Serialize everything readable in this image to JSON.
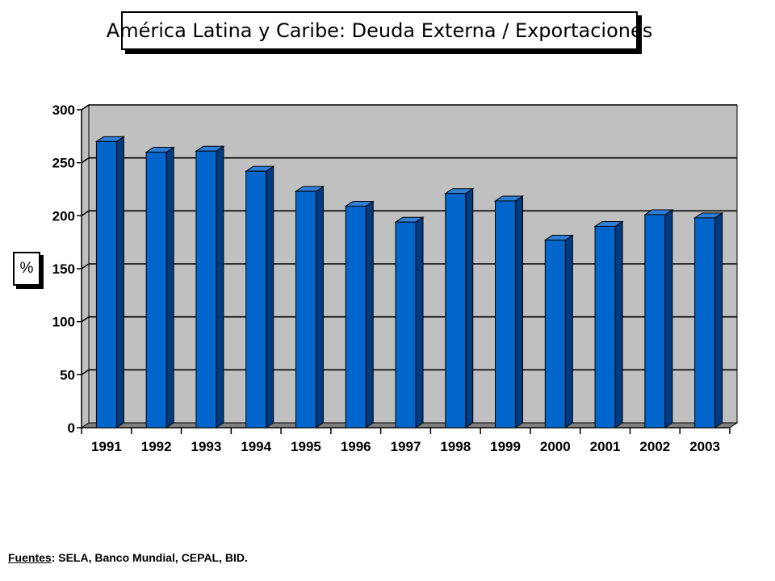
{
  "chart_data": {
    "type": "bar",
    "title": "América Latina y Caribe: Deuda Externa / Exportaciones",
    "ylabel": "%",
    "xlabel": "",
    "categories": [
      "1991",
      "1992",
      "1993",
      "1994",
      "1995",
      "1996",
      "1997",
      "1998",
      "1999",
      "2000",
      "2001",
      "2002",
      "2003"
    ],
    "values": [
      270,
      260,
      261,
      242,
      223,
      209,
      194,
      221,
      214,
      177,
      190,
      201,
      198
    ],
    "ylim": [
      0,
      300
    ],
    "yticks": [
      0,
      50,
      100,
      150,
      200,
      250,
      300
    ],
    "grid": true,
    "colors": {
      "bar_front": "#0066cc",
      "bar_side": "#003a80",
      "bar_top": "#2f7fd6",
      "plot_background": "#c0c0c0",
      "floor": "#808080"
    }
  },
  "footer": {
    "source_label": "Fuentes",
    "source_text": ":  SELA, Banco Mundial, CEPAL, BID."
  }
}
